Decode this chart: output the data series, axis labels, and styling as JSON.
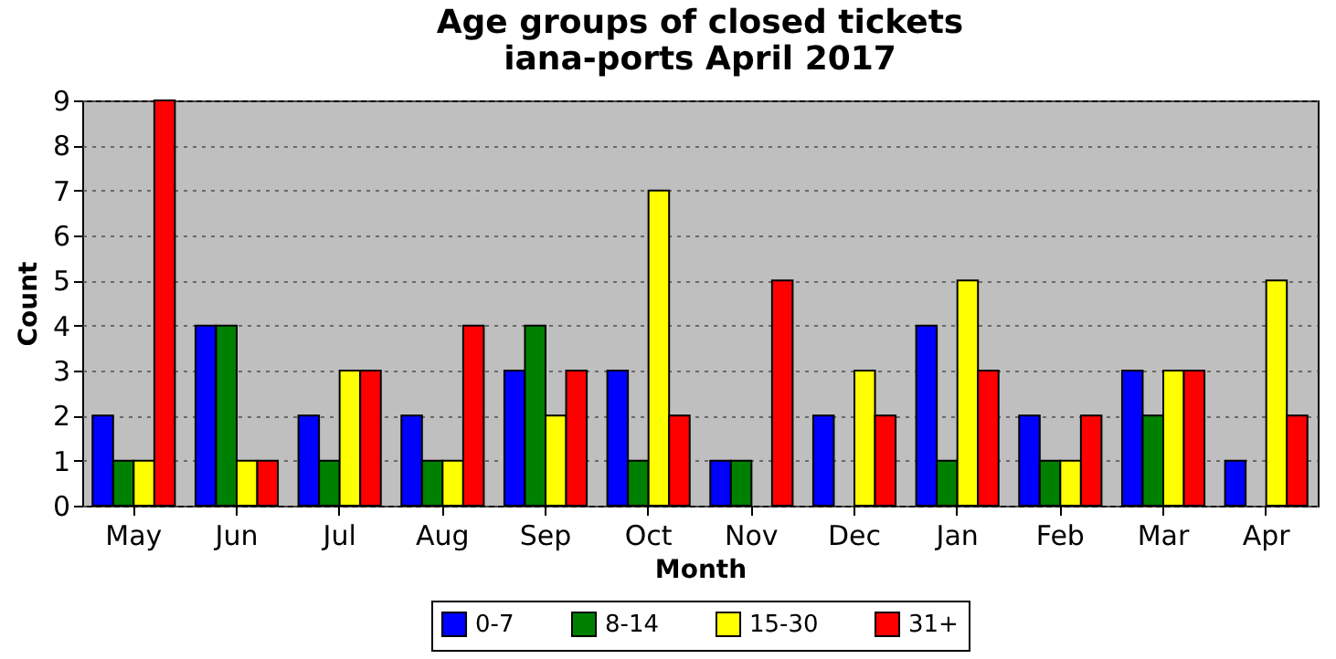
{
  "chart_data": {
    "type": "bar",
    "title": "Age groups of closed tickets\niana-ports April 2017",
    "xlabel": "Month",
    "ylabel": "Count",
    "categories": [
      "May",
      "Jun",
      "Jul",
      "Aug",
      "Sep",
      "Oct",
      "Nov",
      "Dec",
      "Jan",
      "Feb",
      "Mar",
      "Apr"
    ],
    "series": [
      {
        "name": "0-7",
        "color": "#0000ff",
        "values": [
          2,
          4,
          2,
          2,
          3,
          3,
          1,
          2,
          4,
          2,
          3,
          1
        ]
      },
      {
        "name": "8-14",
        "color": "#008000",
        "values": [
          1,
          4,
          1,
          1,
          4,
          1,
          1,
          0,
          1,
          1,
          2,
          0
        ]
      },
      {
        "name": "15-30",
        "color": "#ffff00",
        "values": [
          1,
          1,
          3,
          1,
          2,
          7,
          0,
          3,
          5,
          1,
          3,
          5
        ]
      },
      {
        "name": "31+",
        "color": "#ff0000",
        "values": [
          9,
          1,
          3,
          4,
          3,
          2,
          5,
          2,
          3,
          2,
          3,
          2
        ]
      }
    ],
    "ylim": [
      0,
      9
    ],
    "yticks": [
      0,
      1,
      2,
      3,
      4,
      5,
      6,
      7,
      8,
      9
    ],
    "grid": "y",
    "legend": "bottom"
  }
}
